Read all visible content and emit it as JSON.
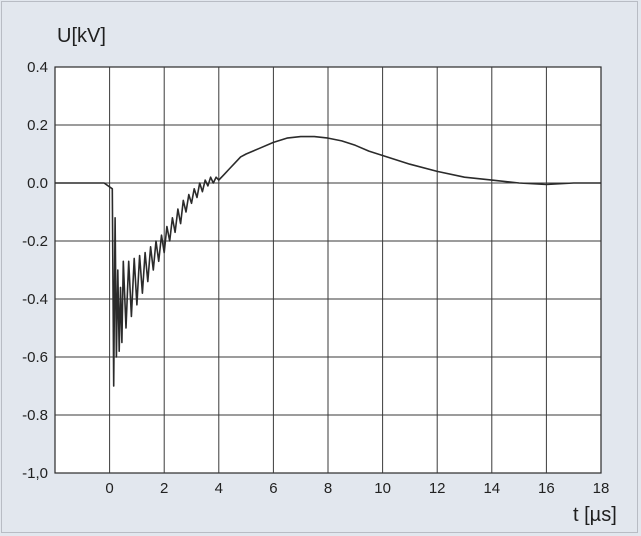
{
  "chart_data": {
    "type": "line",
    "title": "",
    "ylabel": "U[kV]",
    "xlabel": "t [µs]",
    "xlim": [
      -2,
      18
    ],
    "ylim": [
      -1.0,
      0.4
    ],
    "x_ticks": [
      0,
      2,
      4,
      6,
      8,
      10,
      12,
      14,
      16,
      18
    ],
    "x_tick_labels": [
      "0",
      "2",
      "4",
      "6",
      "8",
      "10",
      "12",
      "14",
      "16",
      "18"
    ],
    "x_grid_step": 2,
    "y_ticks": [
      0.4,
      0.2,
      0.0,
      -0.2,
      -0.4,
      -0.6,
      -0.8,
      -1.0
    ],
    "y_tick_labels": [
      "0.4",
      "0.2",
      "0.0",
      "-0.2",
      "-0.4",
      "-0.6",
      "-0.8",
      "-1,0"
    ],
    "grid": true,
    "series": [
      {
        "x": [
          -2.0,
          -1.0,
          -0.2,
          0.1,
          0.15,
          0.2,
          0.25,
          0.3,
          0.35,
          0.4,
          0.45,
          0.5,
          0.6,
          0.7,
          0.8,
          0.9,
          1.0,
          1.1,
          1.2,
          1.3,
          1.4,
          1.5,
          1.6,
          1.7,
          1.8,
          1.9,
          2.0,
          2.1,
          2.2,
          2.3,
          2.4,
          2.5,
          2.6,
          2.7,
          2.8,
          2.9,
          3.0,
          3.1,
          3.2,
          3.3,
          3.4,
          3.5,
          3.6,
          3.7,
          3.8,
          3.9,
          4.0,
          4.2,
          4.4,
          4.6,
          4.8,
          5.0,
          5.5,
          6.0,
          6.5,
          7.0,
          7.5,
          8.0,
          8.5,
          9.0,
          9.5,
          10.0,
          11.0,
          12.0,
          13.0,
          14.0,
          15.0,
          16.0,
          17.0,
          18.0
        ],
        "y": [
          0.0,
          0.0,
          0.0,
          -0.02,
          -0.7,
          -0.12,
          -0.6,
          -0.3,
          -0.58,
          -0.36,
          -0.55,
          -0.27,
          -0.5,
          -0.27,
          -0.46,
          -0.26,
          -0.42,
          -0.25,
          -0.38,
          -0.24,
          -0.34,
          -0.22,
          -0.3,
          -0.2,
          -0.27,
          -0.18,
          -0.24,
          -0.15,
          -0.2,
          -0.12,
          -0.17,
          -0.09,
          -0.14,
          -0.06,
          -0.1,
          -0.04,
          -0.07,
          -0.02,
          -0.05,
          0.0,
          -0.03,
          0.01,
          -0.01,
          0.02,
          0.0,
          0.02,
          0.01,
          0.03,
          0.05,
          0.07,
          0.09,
          0.1,
          0.12,
          0.14,
          0.155,
          0.16,
          0.16,
          0.155,
          0.145,
          0.13,
          0.11,
          0.095,
          0.065,
          0.04,
          0.02,
          0.01,
          0.0,
          -0.005,
          0.0,
          0.0
        ]
      }
    ]
  }
}
